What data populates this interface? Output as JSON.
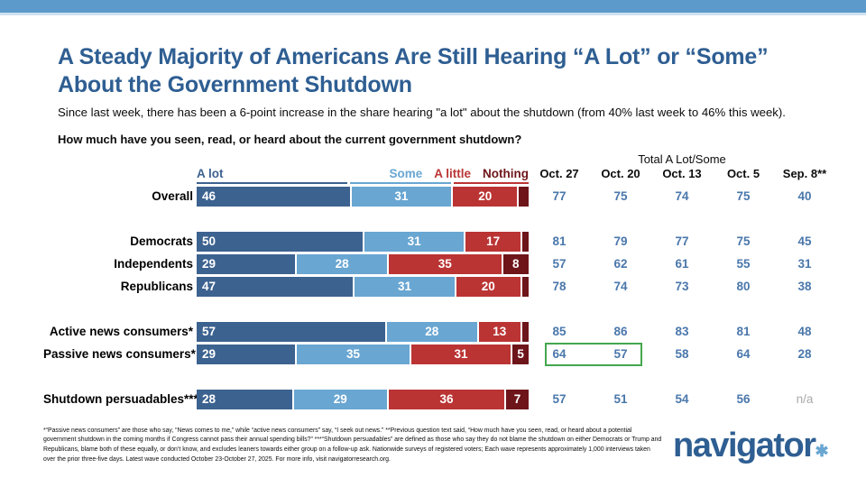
{
  "header": {
    "title": "A Steady Majority of Americans Are Still Hearing “A Lot” or “Some” About the Government Shutdown",
    "subtitle": "Since last week, there has been a 6-point increase in the share hearing \"a lot\" about the shutdown (from 40% last week to 46% this week).",
    "question": "How much have you seen, read, or heard about the current government shutdown?"
  },
  "colors": {
    "accent": "#2e5e92",
    "a_lot": "#3c6290",
    "some": "#69a6d2",
    "a_little": "#bb3434",
    "nothing": "#6e151a",
    "totals": "#4a77ab",
    "stripe": "#5b9aca",
    "stripe_light": "#cde0ef",
    "green": "#44a74e",
    "na_gray": "#a9a9a9"
  },
  "legend": [
    {
      "label": "A lot",
      "color": "#3c6290"
    },
    {
      "label": "Some",
      "color": "#69a6d2"
    },
    {
      "label": "A little",
      "color": "#bb3434"
    },
    {
      "label": "Nothing",
      "color": "#6e151a"
    }
  ],
  "legend_underline": {
    "widths": [
      46,
      31,
      23
    ],
    "colors": [
      "#3c6290",
      "#69a6d2",
      "#bb3434"
    ]
  },
  "totals_header": {
    "group_label": "Total A Lot/Some",
    "columns": [
      "Oct. 27",
      "Oct. 20",
      "Oct. 13",
      "Oct. 5",
      "Sep. 8**"
    ]
  },
  "chart_data": {
    "type": "bar",
    "stacked": true,
    "orientation": "horizontal",
    "xlim": [
      0,
      100
    ],
    "segment_labels": [
      "A lot",
      "Some",
      "A little",
      "Nothing"
    ],
    "segment_colors": [
      "#3c6290",
      "#69a6d2",
      "#bb3434",
      "#6e151a"
    ],
    "min_label_value": 5,
    "rows": [
      {
        "label": "Overall",
        "values": [
          46,
          31,
          20,
          3
        ],
        "totals": [
          "77",
          "75",
          "74",
          "75",
          "40"
        ],
        "gap_before": false
      },
      {
        "label": "Democrats",
        "values": [
          50,
          31,
          17,
          2
        ],
        "totals": [
          "81",
          "79",
          "77",
          "75",
          "45"
        ],
        "gap_before": true
      },
      {
        "label": "Independents",
        "values": [
          29,
          28,
          35,
          8
        ],
        "totals": [
          "57",
          "62",
          "61",
          "55",
          "31"
        ],
        "gap_before": false
      },
      {
        "label": "Republicans",
        "values": [
          47,
          31,
          20,
          2
        ],
        "totals": [
          "78",
          "74",
          "73",
          "80",
          "38"
        ],
        "gap_before": false
      },
      {
        "label": "Active news consumers*",
        "values": [
          57,
          28,
          13,
          2
        ],
        "totals": [
          "85",
          "86",
          "83",
          "81",
          "48"
        ],
        "gap_before": true
      },
      {
        "label": "Passive news consumers*",
        "values": [
          29,
          35,
          31,
          5
        ],
        "totals": [
          "64",
          "57",
          "58",
          "64",
          "28"
        ],
        "gap_before": false,
        "highlight_cols": [
          0,
          1
        ]
      },
      {
        "label": "Shutdown persuadables***",
        "values": [
          28,
          29,
          36,
          7
        ],
        "totals": [
          "57",
          "51",
          "54",
          "56",
          "n/a"
        ],
        "gap_before": true
      }
    ]
  },
  "footnote": "*“Passive news consumers” are those who say, “News comes to me,” while “active news consumers” say, “I seek out news.” **Previous question text said, “How much have you seen, read, or heard about a potential government shutdown in the coming months if Congress cannot pass their annual spending bills?” ***“Shutdown persuadables” are defined as those who say they do not blame the shutdown on either Democrats or Trump and Republicans, blame both of these equally, or don’t know, and excludes leaners towards either group on a follow-up ask. Nationwide surveys of registered voters; Each wave represents approximately 1,000 interviews taken over the prior three-five days. Latest wave conducted October 23-October 27, 2025. For more info, visit navigatorresearch.org.",
  "logo": {
    "text": "navigator",
    "mark": "✱"
  }
}
